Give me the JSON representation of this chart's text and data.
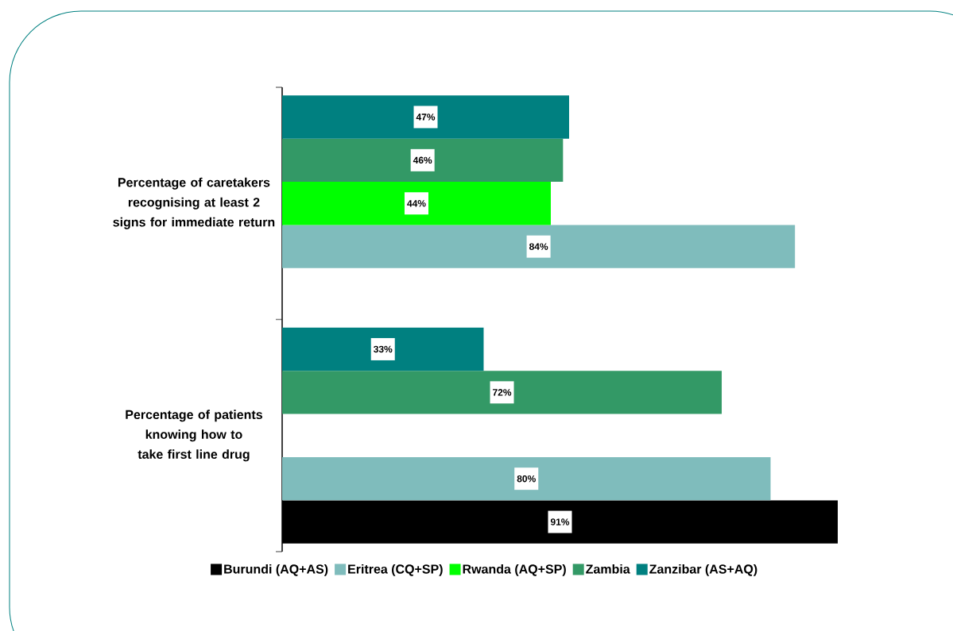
{
  "chart_data": {
    "type": "bar",
    "orientation": "horizontal",
    "categories": [
      "Percentage of caretakers recognising at least 2 signs for immediate return",
      "Percentage of patients knowing how to take first line drug"
    ],
    "xlim": [
      0,
      91
    ],
    "tick_labels": "y",
    "legend": "bottom",
    "series": [
      {
        "name": "Burundi (AQ+AS)",
        "color": "#000000",
        "values": [
          null,
          91
        ],
        "value_labels": [
          null,
          "91%"
        ]
      },
      {
        "name": "Eritrea (CQ+SP)",
        "color": "#7fbcbc",
        "values": [
          84,
          80
        ],
        "value_labels": [
          "84%",
          "80%"
        ]
      },
      {
        "name": "Rwanda (AQ+SP)",
        "color": "#00ff00",
        "values": [
          44,
          null
        ],
        "value_labels": [
          "44%",
          null
        ]
      },
      {
        "name": "Zambia",
        "color": "#339966",
        "values": [
          46,
          72
        ],
        "value_labels": [
          "46%",
          "72%"
        ]
      },
      {
        "name": "Zanzibar (AS+AQ)",
        "color": "#008080",
        "values": [
          47,
          33
        ],
        "value_labels": [
          "47%",
          "33%"
        ]
      }
    ]
  }
}
